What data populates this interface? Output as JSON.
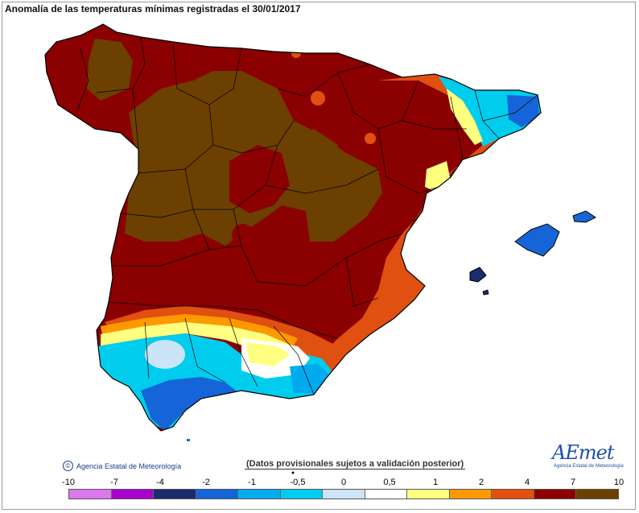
{
  "title": "Anomalía de las temperaturas mínimas registradas el 30/01/2017",
  "footer": {
    "copyright": "Agencia Estatal de Meteorología",
    "note": "(Datos provisionales sujetos a validación posterior)"
  },
  "logo": {
    "text": "AEmet",
    "subtitle": "Agencia Estatal de Meteorología"
  },
  "legend": {
    "ticks": [
      "-10",
      "-7",
      "-4",
      "-2",
      "-1",
      "-0,5",
      "0",
      "0,5",
      "1",
      "2",
      "4",
      "7",
      "10"
    ],
    "colors": [
      "#dd77ee",
      "#aa00cc",
      "#1a2b6e",
      "#1565d8",
      "#00aaee",
      "#00ccee",
      "#cce4f8",
      "#ffffff",
      "#ffff80",
      "#ff9900",
      "#e05010",
      "#8b0000",
      "#6b4000"
    ]
  },
  "colors": {
    "very_high": "#6b4000",
    "high": "#8b0000",
    "mid_high": "#e05010",
    "moderate": "#ff9900",
    "low_positive": "#ffff80",
    "near_zero": "#ffffff",
    "slight_negative": "#cce4f8",
    "negative": "#00ccee",
    "more_negative": "#00aaee",
    "strong_negative": "#1565d8"
  }
}
